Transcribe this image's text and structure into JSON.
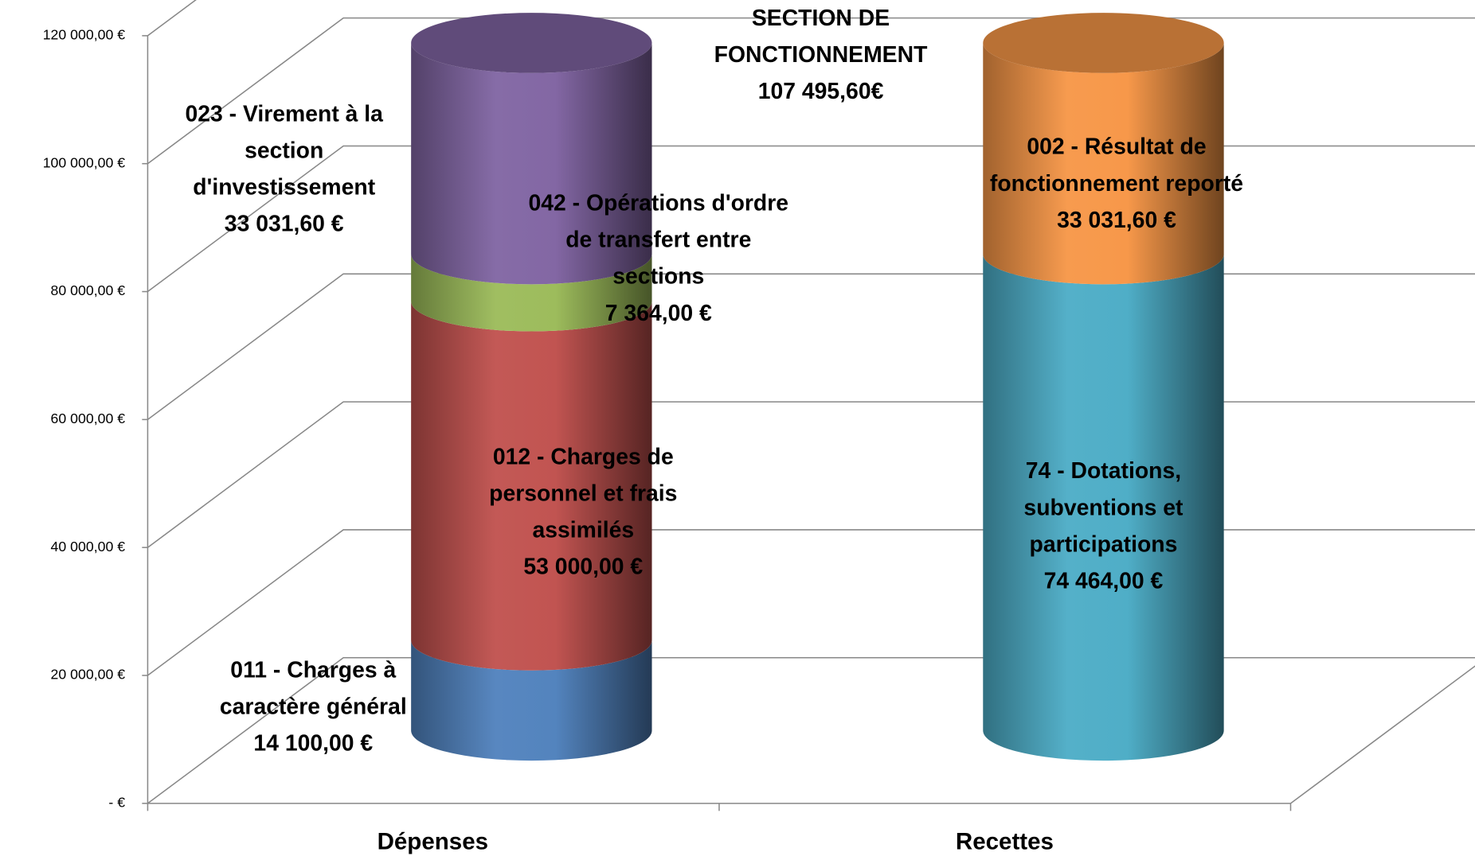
{
  "chart_data": {
    "type": "bar3d-cylinder-stacked",
    "title": "SECTION DE FONCTIONNEMENT",
    "subtitle": "107 495,60€",
    "categories": [
      "Dépenses",
      "Recettes"
    ],
    "ylim": [
      0,
      120000
    ],
    "yticks": [
      {
        "value": 0,
        "label": "-  €"
      },
      {
        "value": 20000,
        "label": "20 000,00 €"
      },
      {
        "value": 40000,
        "label": "40 000,00 €"
      },
      {
        "value": 60000,
        "label": "60 000,00 €"
      },
      {
        "value": 80000,
        "label": "80 000,00 €"
      },
      {
        "value": 100000,
        "label": "100 000,00 €"
      },
      {
        "value": 120000,
        "label": "120 000,00 €"
      }
    ],
    "grid": true,
    "series": [
      {
        "name": "011 - Charges à caractère général",
        "color": "#4f81bd",
        "values": [
          14100,
          null
        ],
        "value_labels": [
          "14 100,00 €",
          null
        ]
      },
      {
        "name": "012 - Charges de personnel et frais assimilés",
        "color": "#c0504d",
        "values": [
          53000,
          null
        ],
        "value_labels": [
          "53 000,00 €",
          null
        ]
      },
      {
        "name": "042 - Opérations d'ordre de transfert entre sections",
        "color": "#9bbb59",
        "values": [
          7364,
          null
        ],
        "value_labels": [
          "7 364,00 €",
          null
        ]
      },
      {
        "name": "023 - Virement à la section d'investissement",
        "color": "#8064a2",
        "values": [
          33031.6,
          null
        ],
        "value_labels": [
          "33 031,60 €",
          null
        ]
      },
      {
        "name": "74 - Dotations, subventions et participations",
        "color": "#4bacc6",
        "values": [
          null,
          74464
        ],
        "value_labels": [
          null,
          "74 464,00 €"
        ]
      },
      {
        "name": "002 - Résultat de fonctionnement reporté",
        "color": "#f79646",
        "values": [
          null,
          33031.6
        ],
        "value_labels": [
          null,
          "33 031,60 €"
        ]
      }
    ]
  }
}
